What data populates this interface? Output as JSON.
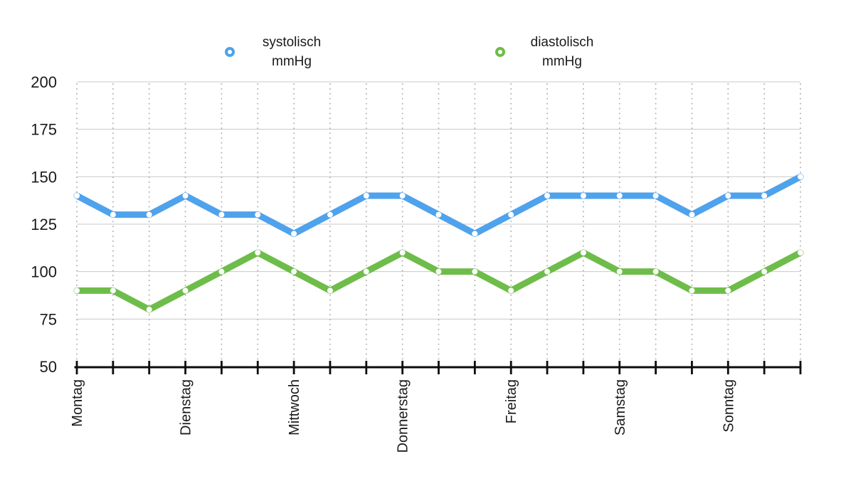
{
  "legend": {
    "entries": [
      {
        "line1": "systolisch",
        "line2": "mmHg"
      },
      {
        "line1": "diastolisch",
        "line2": "mmHg"
      }
    ]
  },
  "chart_data": {
    "type": "line",
    "title": "",
    "xlabel": "",
    "ylabel": "",
    "ylim": [
      50,
      200
    ],
    "y_ticks": [
      50,
      75,
      100,
      125,
      150,
      175,
      200
    ],
    "x_day_labels": [
      "Montag",
      "Dienstag",
      "Mittwoch",
      "Donnerstag",
      "Freitag",
      "Samstag",
      "Sonntag"
    ],
    "x_day_label_point_indexes": [
      0,
      3,
      6,
      9,
      12,
      15,
      18
    ],
    "points_per_day": 3,
    "x_point_count": 21,
    "legend_position": "top",
    "grid": {
      "horizontal": "solid-gray",
      "vertical": "dotted-gray"
    },
    "series": [
      {
        "name": "systolisch mmHg",
        "color": "#4FA2EC",
        "values": [
          140,
          130,
          130,
          140,
          130,
          130,
          120,
          130,
          140,
          140,
          130,
          120,
          130,
          140,
          140,
          140,
          140,
          130,
          140,
          140,
          150
        ]
      },
      {
        "name": "diastolisch mmHg",
        "color": "#6EBD4A",
        "values": [
          90,
          90,
          80,
          90,
          100,
          110,
          100,
          90,
          100,
          110,
          100,
          100,
          90,
          100,
          110,
          100,
          100,
          90,
          90,
          100,
          110
        ]
      }
    ],
    "colors": {
      "axis": "#0d0d0d",
      "h_gridline": "#c9c9c9",
      "v_gridline": "#b3b3b3",
      "marker_fill": "#ffffff",
      "text": "#1a1a1a"
    }
  }
}
